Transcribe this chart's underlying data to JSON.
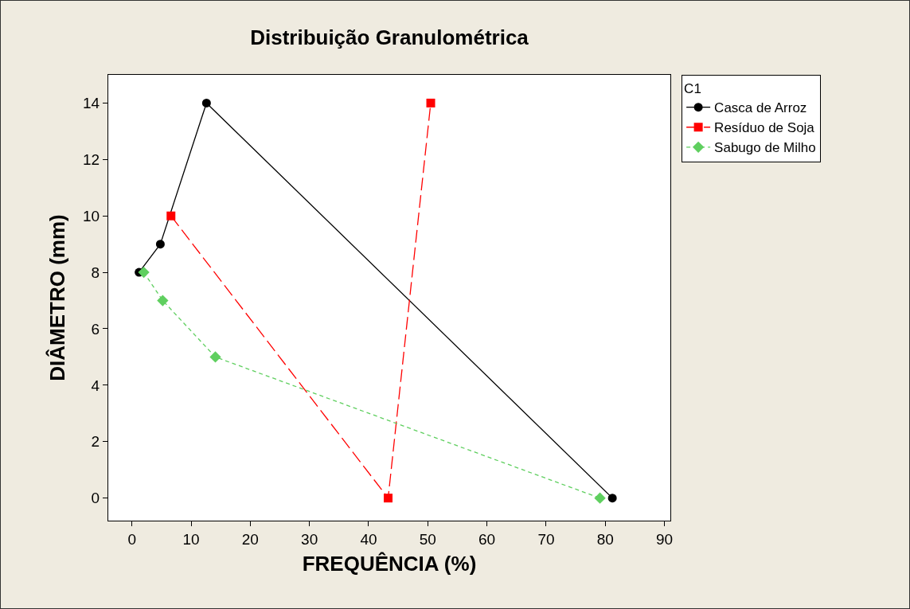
{
  "chart_data": {
    "type": "line",
    "title": "Distribuição Granulométrica",
    "xlabel": "FREQUÊNCIA (%)",
    "ylabel": "DIÂMETRO (mm)",
    "legend_title": "C1",
    "series": [
      {
        "name": "Casca de Arroz",
        "color": "#000000",
        "marker": "circle",
        "line_style": "solid",
        "x": [
          1.2,
          4.8,
          12.6,
          81.2
        ],
        "values": [
          8,
          9,
          14,
          0
        ]
      },
      {
        "name": "Resíduo de Soja",
        "color": "#ff0000",
        "marker": "square",
        "line_style": "dashed",
        "x": [
          6.6,
          43.3,
          50.5
        ],
        "values": [
          10,
          0,
          14
        ]
      },
      {
        "name": "Sabugo de Milho",
        "color": "#5fcf5f",
        "marker": "diamond",
        "line_style": "dotted",
        "x": [
          2.0,
          5.2,
          14.1,
          79.1
        ],
        "values": [
          8,
          7,
          5,
          0
        ]
      }
    ],
    "xlim": [
      -4,
      91
    ],
    "xticks": [
      0,
      10,
      20,
      30,
      40,
      50,
      60,
      70,
      80,
      90
    ],
    "ylim": [
      -0.8,
      15
    ],
    "yticks": [
      0,
      2,
      4,
      6,
      8,
      10,
      12,
      14
    ],
    "grid": false,
    "legend": "top right"
  }
}
